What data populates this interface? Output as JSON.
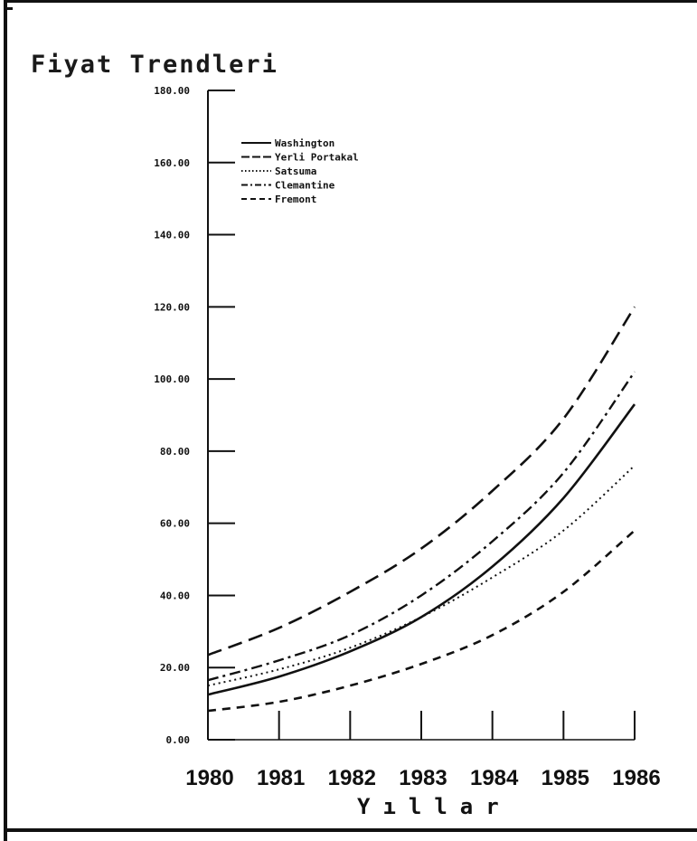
{
  "chart_data": {
    "type": "line",
    "title": "Fiyat Trendleri",
    "xlabel": "Yıllar",
    "ylabel": "",
    "x": [
      1980,
      1981,
      1982,
      1983,
      1984,
      1985,
      1986
    ],
    "x_tick_labels": [
      "1980",
      "1981",
      "1982",
      "1983",
      "1984",
      "1985",
      "1986"
    ],
    "y_tick_labels": [
      "0.00",
      "20.00",
      "40.00",
      "60.00",
      "80.00",
      "100.00",
      "120.00",
      "140.00",
      "160.00",
      "180.00"
    ],
    "ylim": [
      0,
      180
    ],
    "grid": false,
    "legend_position": "top-left",
    "series": [
      {
        "name": "Washington",
        "values": [
          12.5,
          17.5,
          24.5,
          34,
          48,
          67,
          93
        ],
        "dash": "solid"
      },
      {
        "name": "Yerli Portakal",
        "values": [
          23.5,
          31,
          41,
          53,
          69,
          89,
          120
        ],
        "dash": "longdash"
      },
      {
        "name": "Satsuma",
        "values": [
          15,
          19.5,
          25.5,
          34,
          45,
          58,
          76
        ],
        "dash": "dotted"
      },
      {
        "name": "Clemantine",
        "values": [
          16.5,
          22,
          29,
          40,
          55,
          74,
          102
        ],
        "dash": "dashdot"
      },
      {
        "name": "Fremont",
        "values": [
          8,
          10.5,
          15,
          21,
          29,
          41,
          58
        ],
        "dash": "dashed"
      }
    ]
  }
}
